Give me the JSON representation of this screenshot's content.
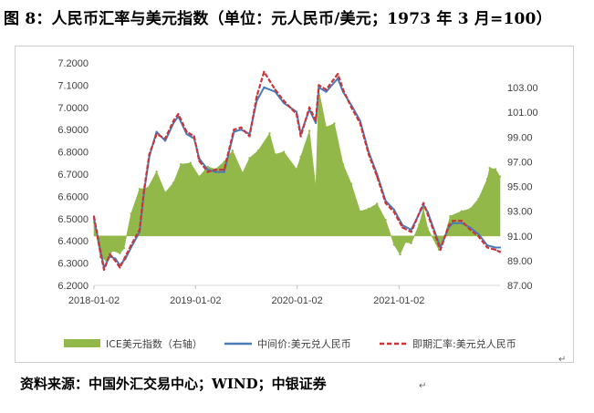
{
  "title": "图 8：人民币汇率与美元指数（单位：元人民币/美元；1973 年 3 月=100）",
  "source": "资料来源：中国外汇交易中心；WIND；中银证券",
  "colors": {
    "area": "#92b84a",
    "mid": "#4a7ab8",
    "spot": "#c8363a"
  },
  "chart_data": {
    "type": "line",
    "x_type": "date",
    "x_ticks": [
      "2018-01-02",
      "2019-01-02",
      "2020-01-02",
      "2021-01-02"
    ],
    "x_range": [
      "2018-01-02",
      "2021-12-31"
    ],
    "y_left": {
      "min": 6.2,
      "max": 7.2,
      "ticks": [
        "6.2000",
        "6.3000",
        "6.4000",
        "6.5000",
        "6.6000",
        "6.7000",
        "6.8000",
        "6.9000",
        "7.0000",
        "7.1000",
        "7.2000"
      ]
    },
    "y_right": {
      "min": 87.0,
      "max": 105.0,
      "ticks": [
        "87.00",
        "89.00",
        "91.00",
        "93.00",
        "95.00",
        "97.00",
        "99.00",
        "101.00",
        "103.00"
      ],
      "area_baseline": 91.0
    },
    "legend": [
      "ICE美元指数（右轴）",
      "中间价:美元兑人民币",
      "即期汇率:美元兑人民币"
    ],
    "series": [
      {
        "name": "ICE美元指数（右轴）",
        "axis": "right",
        "kind": "area",
        "points": [
          [
            "2018-01-02",
            92.1
          ],
          [
            "2018-01-25",
            89.3
          ],
          [
            "2018-02-15",
            89.0
          ],
          [
            "2018-03-10",
            89.8
          ],
          [
            "2018-04-05",
            89.6
          ],
          [
            "2018-04-20",
            90.0
          ],
          [
            "2018-05-15",
            92.8
          ],
          [
            "2018-06-15",
            94.8
          ],
          [
            "2018-07-15",
            94.9
          ],
          [
            "2018-08-15",
            96.2
          ],
          [
            "2018-09-15",
            94.5
          ],
          [
            "2018-10-15",
            95.3
          ],
          [
            "2018-11-10",
            96.8
          ],
          [
            "2018-12-15",
            96.9
          ],
          [
            "2019-01-15",
            95.8
          ],
          [
            "2019-02-15",
            96.6
          ],
          [
            "2019-03-15",
            96.4
          ],
          [
            "2019-04-15",
            97.0
          ],
          [
            "2019-05-15",
            97.9
          ],
          [
            "2019-06-20",
            96.1
          ],
          [
            "2019-07-15",
            97.3
          ],
          [
            "2019-08-15",
            97.9
          ],
          [
            "2019-09-25",
            99.3
          ],
          [
            "2019-10-15",
            97.6
          ],
          [
            "2019-11-15",
            97.8
          ],
          [
            "2019-12-31",
            96.4
          ],
          [
            "2020-01-15",
            97.4
          ],
          [
            "2020-02-15",
            99.5
          ],
          [
            "2020-03-09",
            94.9
          ],
          [
            "2020-03-20",
            102.8
          ],
          [
            "2020-04-15",
            99.8
          ],
          [
            "2020-05-15",
            100.1
          ],
          [
            "2020-06-15",
            96.8
          ],
          [
            "2020-07-15",
            95.2
          ],
          [
            "2020-08-15",
            93.0
          ],
          [
            "2020-09-15",
            93.2
          ],
          [
            "2020-10-15",
            93.6
          ],
          [
            "2020-11-15",
            92.3
          ],
          [
            "2020-12-15",
            90.3
          ],
          [
            "2021-01-06",
            89.5
          ],
          [
            "2021-01-25",
            90.5
          ],
          [
            "2021-02-15",
            90.4
          ],
          [
            "2021-03-15",
            91.9
          ],
          [
            "2021-03-31",
            93.2
          ],
          [
            "2021-04-15",
            91.6
          ],
          [
            "2021-05-25",
            89.9
          ],
          [
            "2021-06-15",
            91.0
          ],
          [
            "2021-07-05",
            92.6
          ],
          [
            "2021-08-15",
            93.0
          ],
          [
            "2021-09-15",
            93.2
          ],
          [
            "2021-10-15",
            94.0
          ],
          [
            "2021-11-15",
            95.6
          ],
          [
            "2021-11-24",
            96.5
          ],
          [
            "2021-12-15",
            96.4
          ],
          [
            "2021-12-31",
            95.8
          ]
        ]
      },
      {
        "name": "中间价:美元兑人民币",
        "axis": "left",
        "kind": "line",
        "points": [
          [
            "2018-01-02",
            6.5
          ],
          [
            "2018-01-25",
            6.36
          ],
          [
            "2018-02-07",
            6.28
          ],
          [
            "2018-02-28",
            6.33
          ],
          [
            "2018-03-20",
            6.32
          ],
          [
            "2018-04-05",
            6.29
          ],
          [
            "2018-04-25",
            6.32
          ],
          [
            "2018-05-15",
            6.37
          ],
          [
            "2018-06-15",
            6.44
          ],
          [
            "2018-07-01",
            6.62
          ],
          [
            "2018-07-20",
            6.78
          ],
          [
            "2018-08-15",
            6.89
          ],
          [
            "2018-09-15",
            6.85
          ],
          [
            "2018-10-15",
            6.93
          ],
          [
            "2018-11-01",
            6.96
          ],
          [
            "2018-12-01",
            6.88
          ],
          [
            "2018-12-28",
            6.86
          ],
          [
            "2019-01-15",
            6.77
          ],
          [
            "2019-02-15",
            6.72
          ],
          [
            "2019-03-15",
            6.71
          ],
          [
            "2019-04-15",
            6.71
          ],
          [
            "2019-05-20",
            6.89
          ],
          [
            "2019-06-15",
            6.9
          ],
          [
            "2019-07-15",
            6.88
          ],
          [
            "2019-08-10",
            7.03
          ],
          [
            "2019-09-05",
            7.09
          ],
          [
            "2019-10-15",
            7.07
          ],
          [
            "2019-11-15",
            7.02
          ],
          [
            "2019-12-31",
            6.98
          ],
          [
            "2020-01-15",
            6.88
          ],
          [
            "2020-02-15",
            6.99
          ],
          [
            "2020-03-09",
            6.93
          ],
          [
            "2020-03-20",
            7.09
          ],
          [
            "2020-04-15",
            7.07
          ],
          [
            "2020-05-27",
            7.13
          ],
          [
            "2020-06-15",
            7.07
          ],
          [
            "2020-07-15",
            7.01
          ],
          [
            "2020-08-15",
            6.94
          ],
          [
            "2020-09-15",
            6.8
          ],
          [
            "2020-10-15",
            6.7
          ],
          [
            "2020-11-15",
            6.58
          ],
          [
            "2020-12-15",
            6.54
          ],
          [
            "2021-01-15",
            6.47
          ],
          [
            "2021-02-15",
            6.45
          ],
          [
            "2021-03-31",
            6.56
          ],
          [
            "2021-04-15",
            6.53
          ],
          [
            "2021-05-31",
            6.37
          ],
          [
            "2021-06-30",
            6.46
          ],
          [
            "2021-07-15",
            6.48
          ],
          [
            "2021-08-15",
            6.48
          ],
          [
            "2021-09-15",
            6.46
          ],
          [
            "2021-10-15",
            6.43
          ],
          [
            "2021-11-15",
            6.38
          ],
          [
            "2021-12-15",
            6.37
          ],
          [
            "2021-12-31",
            6.37
          ]
        ]
      },
      {
        "name": "即期汇率:美元兑人民币",
        "axis": "left",
        "kind": "line",
        "dashed": true,
        "points": [
          [
            "2018-01-02",
            6.51
          ],
          [
            "2018-01-25",
            6.35
          ],
          [
            "2018-02-07",
            6.27
          ],
          [
            "2018-02-28",
            6.34
          ],
          [
            "2018-03-20",
            6.31
          ],
          [
            "2018-04-05",
            6.28
          ],
          [
            "2018-04-25",
            6.33
          ],
          [
            "2018-05-15",
            6.38
          ],
          [
            "2018-06-15",
            6.45
          ],
          [
            "2018-07-01",
            6.63
          ],
          [
            "2018-07-20",
            6.79
          ],
          [
            "2018-08-15",
            6.88
          ],
          [
            "2018-09-15",
            6.86
          ],
          [
            "2018-10-15",
            6.94
          ],
          [
            "2018-11-01",
            6.97
          ],
          [
            "2018-12-01",
            6.89
          ],
          [
            "2018-12-28",
            6.87
          ],
          [
            "2019-01-15",
            6.76
          ],
          [
            "2019-02-15",
            6.71
          ],
          [
            "2019-03-15",
            6.72
          ],
          [
            "2019-04-15",
            6.72
          ],
          [
            "2019-05-20",
            6.9
          ],
          [
            "2019-06-15",
            6.91
          ],
          [
            "2019-07-15",
            6.87
          ],
          [
            "2019-08-10",
            7.05
          ],
          [
            "2019-09-05",
            7.16
          ],
          [
            "2019-10-15",
            7.08
          ],
          [
            "2019-11-15",
            7.03
          ],
          [
            "2019-12-31",
            6.97
          ],
          [
            "2020-01-15",
            6.87
          ],
          [
            "2020-02-15",
            7.0
          ],
          [
            "2020-03-09",
            6.94
          ],
          [
            "2020-03-20",
            7.1
          ],
          [
            "2020-04-15",
            7.08
          ],
          [
            "2020-05-27",
            7.15
          ],
          [
            "2020-06-15",
            7.08
          ],
          [
            "2020-07-15",
            7.0
          ],
          [
            "2020-08-15",
            6.93
          ],
          [
            "2020-09-15",
            6.79
          ],
          [
            "2020-10-15",
            6.69
          ],
          [
            "2020-11-15",
            6.57
          ],
          [
            "2020-12-15",
            6.53
          ],
          [
            "2021-01-15",
            6.46
          ],
          [
            "2021-02-15",
            6.44
          ],
          [
            "2021-03-31",
            6.57
          ],
          [
            "2021-04-15",
            6.52
          ],
          [
            "2021-05-31",
            6.36
          ],
          [
            "2021-06-30",
            6.47
          ],
          [
            "2021-07-15",
            6.49
          ],
          [
            "2021-08-15",
            6.49
          ],
          [
            "2021-09-15",
            6.45
          ],
          [
            "2021-10-15",
            6.42
          ],
          [
            "2021-11-15",
            6.37
          ],
          [
            "2021-12-15",
            6.36
          ],
          [
            "2021-12-31",
            6.35
          ]
        ]
      }
    ]
  }
}
